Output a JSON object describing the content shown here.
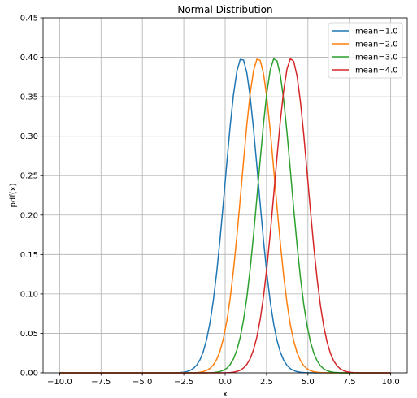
{
  "chart_data": {
    "type": "line",
    "title": "Normal Distribution",
    "xlabel": "x",
    "ylabel": "pdf(x)",
    "xlim": [
      -11,
      11
    ],
    "ylim": [
      0,
      0.45
    ],
    "xticks": [
      -10.0,
      -7.5,
      -5.0,
      -2.5,
      0.0,
      2.5,
      5.0,
      7.5,
      10.0
    ],
    "xtick_labels": [
      "−10.0",
      "−7.5",
      "−5.0",
      "−2.5",
      "0.0",
      "2.5",
      "5.0",
      "7.5",
      "10.0"
    ],
    "yticks": [
      0.0,
      0.05,
      0.1,
      0.15,
      0.2,
      0.25,
      0.3,
      0.35,
      0.4,
      0.45
    ],
    "ytick_labels": [
      "0.00",
      "0.05",
      "0.10",
      "0.15",
      "0.20",
      "0.25",
      "0.30",
      "0.35",
      "0.40",
      "0.45"
    ],
    "grid": true,
    "legend_position": "top-right",
    "series": [
      {
        "name": "mean=1.0",
        "mean": 1.0,
        "std": 1.0,
        "color": "#1f77b4"
      },
      {
        "name": "mean=2.0",
        "mean": 2.0,
        "std": 1.0,
        "color": "#ff7f0e"
      },
      {
        "name": "mean=3.0",
        "mean": 3.0,
        "std": 1.0,
        "color": "#2ca02c"
      },
      {
        "name": "mean=4.0",
        "mean": 4.0,
        "std": 1.0,
        "color": "#d62728"
      }
    ],
    "x_range": [
      -10,
      10
    ],
    "n_points": 100
  }
}
